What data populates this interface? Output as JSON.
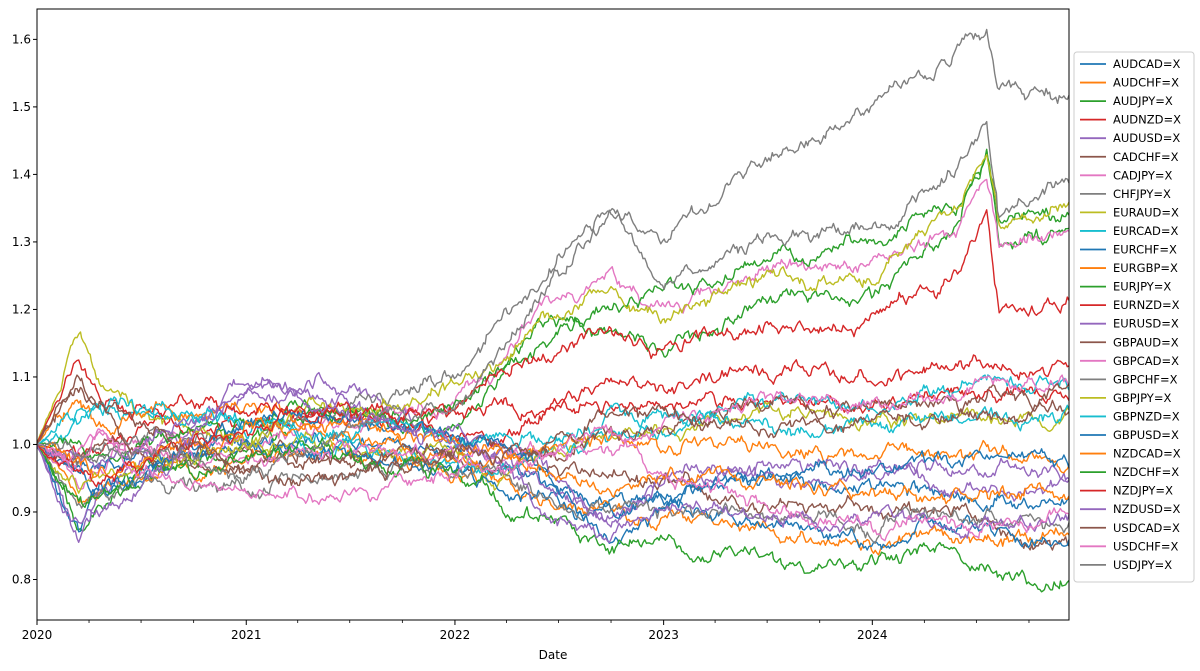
{
  "chart_data": {
    "type": "line",
    "title": "",
    "xlabel": "Date",
    "ylabel": "",
    "xlim": [
      "2020-01-01",
      "2024-12-10"
    ],
    "ylim": [
      0.74,
      1.645
    ],
    "x_ticks": [
      {
        "date": "2020-01-01",
        "label": "2020"
      },
      {
        "date": "2021-01-01",
        "label": "2021"
      },
      {
        "date": "2022-01-01",
        "label": "2022"
      },
      {
        "date": "2023-01-01",
        "label": "2023"
      },
      {
        "date": "2024-01-01",
        "label": "2024"
      }
    ],
    "y_ticks": [
      0.8,
      0.9,
      1.0,
      1.1,
      1.2,
      1.3,
      1.4,
      1.5,
      1.6
    ],
    "y_tick_labels": [
      "0.8",
      "0.9",
      "1.0",
      "1.1",
      "1.2",
      "1.3",
      "1.4",
      "1.5",
      "1.6"
    ],
    "grid": false,
    "legend_position": "right-outside",
    "x_dates": [
      "2020-01-01",
      "2020-03-15",
      "2020-04-15",
      "2020-07-01",
      "2021-01-01",
      "2021-05-01",
      "2021-10-01",
      "2022-01-01",
      "2022-03-10",
      "2022-06-01",
      "2022-10-01",
      "2023-01-01",
      "2023-07-01",
      "2024-01-01",
      "2024-06-01",
      "2024-07-20",
      "2024-08-10",
      "2024-12-10"
    ],
    "series": [
      {
        "name": "AUDCAD=X",
        "color": "#1f77b4",
        "values": [
          1.0,
          0.95,
          0.93,
          0.96,
          1.0,
          1.01,
          1.0,
          0.98,
          0.96,
          0.94,
          0.92,
          0.93,
          0.95,
          0.94,
          0.92,
          0.91,
          0.92,
          0.91
        ]
      },
      {
        "name": "AUDCHF=X",
        "color": "#ff7f0e",
        "values": [
          1.0,
          0.93,
          0.92,
          0.96,
          0.98,
          0.99,
          0.97,
          0.96,
          0.95,
          0.91,
          0.89,
          0.89,
          0.87,
          0.85,
          0.87,
          0.86,
          0.85,
          0.86
        ]
      },
      {
        "name": "AUDJPY=X",
        "color": "#2ca02c",
        "values": [
          1.0,
          0.88,
          0.92,
          0.96,
          1.0,
          1.05,
          1.03,
          1.02,
          1.08,
          1.18,
          1.16,
          1.13,
          1.22,
          1.22,
          1.33,
          1.43,
          1.28,
          1.32
        ]
      },
      {
        "name": "AUDNZD=X",
        "color": "#d62728",
        "values": [
          1.0,
          0.98,
          0.99,
          1.02,
          1.03,
          1.04,
          1.05,
          1.03,
          1.05,
          1.06,
          1.06,
          1.05,
          1.07,
          1.06,
          1.08,
          1.08,
          1.07,
          1.07
        ]
      },
      {
        "name": "AUDUSD=X",
        "color": "#9467bd",
        "values": [
          1.0,
          0.86,
          0.92,
          0.98,
          1.08,
          1.1,
          1.04,
          1.01,
          1.01,
          0.97,
          0.89,
          0.95,
          0.94,
          0.95,
          0.93,
          0.94,
          0.94,
          0.93
        ]
      },
      {
        "name": "CADCHF=X",
        "color": "#8c564b",
        "values": [
          1.0,
          0.98,
          0.99,
          0.99,
          0.98,
          0.98,
          0.97,
          0.98,
          0.98,
          0.96,
          0.96,
          0.95,
          0.91,
          0.9,
          0.9,
          0.87,
          0.86,
          0.85
        ]
      },
      {
        "name": "CADJPY=X",
        "color": "#e377c2",
        "values": [
          1.0,
          0.95,
          0.98,
          1.0,
          1.0,
          1.03,
          1.04,
          1.06,
          1.1,
          1.2,
          1.24,
          1.2,
          1.26,
          1.26,
          1.32,
          1.4,
          1.3,
          1.32
        ]
      },
      {
        "name": "CHFJPY=X",
        "color": "#7f7f7f",
        "values": [
          1.0,
          0.98,
          1.0,
          1.01,
          1.01,
          1.04,
          1.07,
          1.1,
          1.18,
          1.25,
          1.35,
          1.3,
          1.43,
          1.5,
          1.58,
          1.6,
          1.53,
          1.52
        ]
      },
      {
        "name": "EURAUD=X",
        "color": "#bcbd22",
        "values": [
          1.0,
          1.18,
          1.1,
          1.03,
          1.01,
          1.0,
          0.98,
          0.99,
          0.95,
          0.97,
          1.03,
          1.02,
          1.05,
          1.03,
          1.04,
          1.05,
          1.05,
          1.05
        ]
      },
      {
        "name": "EURCAD=X",
        "color": "#17becf",
        "values": [
          1.0,
          1.03,
          1.05,
          1.04,
          1.04,
          1.0,
          0.98,
          0.97,
          0.96,
          0.99,
          1.02,
          1.03,
          1.06,
          1.06,
          1.07,
          1.1,
          1.09,
          1.09
        ]
      },
      {
        "name": "EURCHF=X",
        "color": "#1f77b4",
        "values": [
          1.0,
          0.98,
          0.97,
          0.98,
          0.99,
          0.99,
          0.97,
          0.96,
          0.93,
          0.92,
          0.89,
          0.91,
          0.89,
          0.86,
          0.88,
          0.87,
          0.87,
          0.86
        ]
      },
      {
        "name": "EURGBP=X",
        "color": "#ff7f0e",
        "values": [
          1.0,
          1.07,
          1.03,
          1.05,
          1.06,
          1.02,
          1.0,
          0.98,
          0.98,
          0.99,
          1.01,
          1.0,
          0.99,
          0.99,
          0.98,
          0.99,
          0.99,
          0.98
        ]
      },
      {
        "name": "EURJPY=X",
        "color": "#2ca02c",
        "values": [
          1.0,
          1.0,
          0.98,
          1.0,
          1.03,
          1.06,
          1.04,
          1.05,
          1.1,
          1.15,
          1.2,
          1.22,
          1.27,
          1.3,
          1.36,
          1.43,
          1.33,
          1.34
        ]
      },
      {
        "name": "EURNZD=X",
        "color": "#d62728",
        "values": [
          1.0,
          1.13,
          1.08,
          1.05,
          1.06,
          1.04,
          1.03,
          1.02,
          1.0,
          1.03,
          1.1,
          1.08,
          1.12,
          1.1,
          1.12,
          1.13,
          1.12,
          1.12
        ]
      },
      {
        "name": "EURUSD=X",
        "color": "#9467bd",
        "values": [
          1.0,
          0.98,
          0.97,
          1.0,
          1.09,
          1.07,
          1.03,
          1.01,
          0.99,
          0.94,
          0.87,
          0.95,
          0.97,
          0.97,
          0.96,
          0.97,
          0.98,
          0.94
        ]
      },
      {
        "name": "GBPAUD=X",
        "color": "#8c564b",
        "values": [
          1.0,
          1.09,
          1.06,
          0.98,
          0.96,
          0.98,
          0.99,
          1.0,
          1.0,
          0.99,
          1.01,
          1.02,
          1.05,
          1.05,
          1.06,
          1.07,
          1.07,
          1.06
        ]
      },
      {
        "name": "GBPCAD=X",
        "color": "#e377c2",
        "values": [
          1.0,
          0.96,
          1.0,
          0.99,
          0.98,
          0.99,
          0.98,
          0.99,
          0.98,
          0.99,
          0.99,
          1.02,
          1.06,
          1.06,
          1.08,
          1.1,
          1.09,
          1.09
        ]
      },
      {
        "name": "GBPCHF=X",
        "color": "#7f7f7f",
        "values": [
          1.0,
          0.91,
          0.93,
          0.94,
          0.93,
          0.95,
          0.96,
          0.97,
          0.96,
          0.92,
          0.89,
          0.91,
          0.9,
          0.88,
          0.9,
          0.89,
          0.88,
          0.88
        ]
      },
      {
        "name": "GBPJPY=X",
        "color": "#bcbd22",
        "values": [
          1.0,
          0.93,
          0.95,
          0.97,
          0.99,
          1.06,
          1.05,
          1.08,
          1.1,
          1.18,
          1.24,
          1.18,
          1.25,
          1.25,
          1.35,
          1.43,
          1.32,
          1.36
        ]
      },
      {
        "name": "GBPNZD=X",
        "color": "#17becf",
        "values": [
          1.0,
          1.04,
          1.05,
          1.05,
          1.03,
          1.02,
          1.03,
          1.0,
          1.02,
          1.0,
          1.04,
          1.04,
          1.03,
          1.03,
          1.04,
          1.05,
          1.04,
          1.04
        ]
      },
      {
        "name": "GBPUSD=X",
        "color": "#1f77b4",
        "values": [
          1.0,
          0.87,
          0.94,
          0.94,
          1.03,
          1.05,
          1.03,
          1.02,
          1.01,
          0.96,
          0.85,
          0.92,
          0.96,
          0.97,
          0.97,
          0.98,
          0.99,
          0.97
        ]
      },
      {
        "name": "NZDCAD=X",
        "color": "#ff7f0e",
        "values": [
          1.0,
          0.97,
          0.95,
          0.98,
          1.03,
          1.02,
          1.02,
          1.0,
          0.99,
          0.96,
          0.93,
          0.96,
          0.95,
          0.93,
          0.93,
          0.93,
          0.93,
          0.92
        ]
      },
      {
        "name": "NZDCHF=X",
        "color": "#2ca02c",
        "values": [
          1.0,
          0.92,
          0.92,
          0.95,
          0.98,
          0.99,
          0.97,
          0.96,
          0.93,
          0.88,
          0.85,
          0.86,
          0.82,
          0.82,
          0.84,
          0.81,
          0.8,
          0.8
        ]
      },
      {
        "name": "NZDJPY=X",
        "color": "#d62728",
        "values": [
          1.0,
          0.96,
          0.95,
          0.97,
          1.02,
          1.05,
          1.05,
          1.05,
          1.12,
          1.13,
          1.16,
          1.14,
          1.17,
          1.19,
          1.25,
          1.35,
          1.2,
          1.22
        ]
      },
      {
        "name": "NZDUSD=X",
        "color": "#9467bd",
        "values": [
          1.0,
          0.87,
          0.9,
          0.94,
          1.08,
          1.06,
          1.02,
          1.0,
          0.98,
          0.91,
          0.86,
          0.91,
          0.9,
          0.89,
          0.88,
          0.9,
          0.89,
          0.88
        ]
      },
      {
        "name": "USDCAD=X",
        "color": "#8c564b",
        "values": [
          1.0,
          1.1,
          1.07,
          1.03,
          0.96,
          0.94,
          0.96,
          0.98,
          0.98,
          1.0,
          1.05,
          1.04,
          1.03,
          1.03,
          1.05,
          1.04,
          1.03,
          1.08
        ]
      },
      {
        "name": "USDCHF=X",
        "color": "#e377c2",
        "values": [
          1.0,
          0.99,
          1.0,
          0.96,
          0.92,
          0.93,
          0.94,
          0.95,
          0.95,
          0.98,
          1.02,
          0.95,
          0.9,
          0.88,
          0.89,
          0.88,
          0.88,
          0.9
        ]
      },
      {
        "name": "USDJPY=X",
        "color": "#7f7f7f",
        "values": [
          1.0,
          0.99,
          0.98,
          0.99,
          0.95,
          1.0,
          1.04,
          1.06,
          1.12,
          1.22,
          1.35,
          1.24,
          1.3,
          1.32,
          1.41,
          1.47,
          1.33,
          1.39
        ]
      }
    ]
  }
}
